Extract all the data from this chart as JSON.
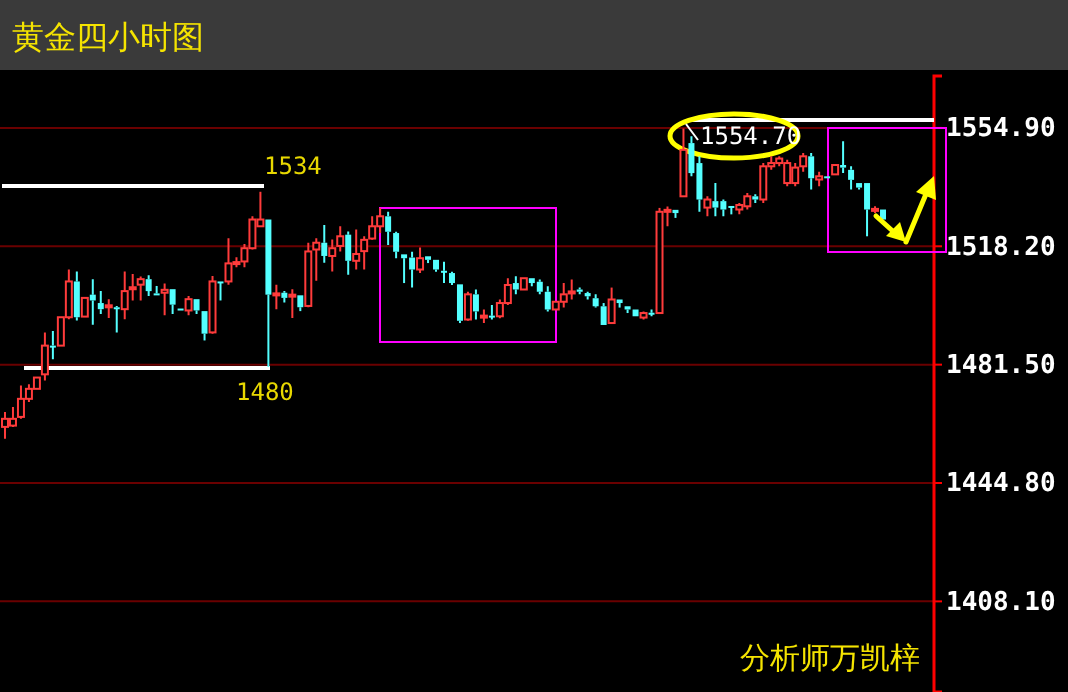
{
  "chart_data": {
    "type": "candlestick",
    "title": "黄金四小时图",
    "categories": [
      null,
      null,
      null,
      null,
      null,
      null,
      null,
      null,
      null,
      null,
      null,
      null,
      null,
      null,
      null,
      null,
      null,
      null,
      null,
      null,
      null,
      null,
      null,
      null,
      null,
      null,
      null,
      null,
      null,
      null,
      null,
      null,
      null,
      null,
      null,
      null,
      null,
      null,
      null,
      null,
      null,
      null,
      null,
      null,
      null,
      null,
      null,
      null,
      null,
      null,
      null,
      null,
      null,
      null,
      null,
      null,
      null,
      null,
      null,
      null,
      null,
      null,
      null,
      null,
      null,
      null,
      null,
      null,
      null,
      null,
      null,
      null,
      null,
      null,
      null,
      null,
      null,
      null,
      null,
      null,
      null,
      null,
      null,
      null,
      null,
      null,
      null,
      null,
      null,
      null,
      null,
      null,
      null,
      null,
      null,
      null,
      null,
      null,
      null,
      null,
      null,
      null,
      null,
      null,
      null,
      null,
      null,
      null,
      null,
      null,
      null
    ],
    "ohlc": [
      [
        1462.2,
        1466.8,
        1458.5,
        1464.7
      ],
      [
        1462.6,
        1468.4,
        1462.2,
        1464.7
      ],
      [
        1465.3,
        1475.0,
        1464.7,
        1470.9
      ],
      [
        1470.9,
        1475.4,
        1469.9,
        1474.0
      ],
      [
        1474.0,
        1477.5,
        1474.0,
        1477.5
      ],
      [
        1478.5,
        1491.5,
        1476.6,
        1487.4
      ],
      [
        1487.4,
        1491.9,
        1483.2,
        1487.0
      ],
      [
        1487.4,
        1496.2,
        1487.4,
        1496.2
      ],
      [
        1496.2,
        1511.0,
        1495.6,
        1507.3
      ],
      [
        1507.3,
        1510.4,
        1495.2,
        1496.2
      ],
      [
        1496.4,
        1502.2,
        1496.4,
        1502.2
      ],
      [
        1503.2,
        1508.0,
        1493.9,
        1501.4
      ],
      [
        1500.6,
        1504.3,
        1497.2,
        1498.7
      ],
      [
        1499.3,
        1501.8,
        1496.0,
        1499.9
      ],
      [
        1499.3,
        1499.7,
        1491.5,
        1498.9
      ],
      [
        1498.7,
        1510.4,
        1495.6,
        1504.3
      ],
      [
        1505.3,
        1509.6,
        1501.4,
        1505.5
      ],
      [
        1506.3,
        1508.8,
        1501.4,
        1508.0
      ],
      [
        1508.0,
        1509.2,
        1502.8,
        1504.3
      ],
      [
        1503.6,
        1505.9,
        1503.4,
        1503.4
      ],
      [
        1503.8,
        1506.7,
        1496.8,
        1504.7
      ],
      [
        1504.9,
        1504.9,
        1497.2,
        1500.1
      ],
      [
        1498.9,
        1498.9,
        1498.3,
        1498.3
      ],
      [
        1498.3,
        1502.8,
        1496.8,
        1501.8
      ],
      [
        1501.8,
        1501.8,
        1497.2,
        1498.3
      ],
      [
        1498.1,
        1498.1,
        1489.0,
        1491.1
      ],
      [
        1491.5,
        1509.0,
        1491.1,
        1507.3
      ],
      [
        1507.3,
        1507.3,
        1501.4,
        1507.0
      ],
      [
        1507.3,
        1520.7,
        1506.3,
        1512.9
      ],
      [
        1512.9,
        1514.8,
        1511.7,
        1513.3
      ],
      [
        1513.5,
        1518.9,
        1511.7,
        1517.6
      ],
      [
        1517.6,
        1527.5,
        1517.2,
        1526.5
      ],
      [
        1524.4,
        1535.1,
        1524.4,
        1526.5
      ],
      [
        1526.5,
        1526.5,
        1480.8,
        1503.2
      ],
      [
        1503.2,
        1506.3,
        1498.7,
        1503.6
      ],
      [
        1503.8,
        1504.3,
        1500.8,
        1502.2
      ],
      [
        1502.8,
        1504.9,
        1496.0,
        1503.2
      ],
      [
        1503.0,
        1503.0,
        1498.1,
        1499.3
      ],
      [
        1499.7,
        1519.3,
        1499.3,
        1516.6
      ],
      [
        1517.2,
        1520.7,
        1507.5,
        1519.3
      ],
      [
        1519.3,
        1524.8,
        1513.1,
        1515.2
      ],
      [
        1515.2,
        1520.3,
        1510.4,
        1517.6
      ],
      [
        1518.3,
        1524.4,
        1516.6,
        1521.3
      ],
      [
        1521.8,
        1522.8,
        1509.4,
        1513.7
      ],
      [
        1513.7,
        1523.4,
        1511.0,
        1515.8
      ],
      [
        1516.7,
        1521.3,
        1511.0,
        1520.2
      ],
      [
        1520.6,
        1527.5,
        1520.2,
        1524.4
      ],
      [
        1524.4,
        1530.1,
        1522.3,
        1527.5
      ],
      [
        1527.5,
        1528.9,
        1518.6,
        1522.7
      ],
      [
        1522.3,
        1522.7,
        1514.5,
        1516.5
      ],
      [
        1515.7,
        1515.7,
        1506.8,
        1514.5
      ],
      [
        1514.7,
        1516.5,
        1505.4,
        1511.0
      ],
      [
        1511.0,
        1517.8,
        1509.9,
        1514.5
      ],
      [
        1515.1,
        1515.1,
        1513.0,
        1514.0
      ],
      [
        1514.0,
        1514.0,
        1510.3,
        1511.0
      ],
      [
        1510.6,
        1513.4,
        1506.8,
        1510.5
      ],
      [
        1509.9,
        1510.3,
        1506.2,
        1506.8
      ],
      [
        1506.4,
        1506.4,
        1494.4,
        1495.1
      ],
      [
        1495.5,
        1504.1,
        1495.1,
        1503.3
      ],
      [
        1503.3,
        1504.8,
        1495.5,
        1498.0
      ],
      [
        1496.5,
        1498.6,
        1494.4,
        1496.7
      ],
      [
        1496.7,
        1500.0,
        1495.5,
        1496.5
      ],
      [
        1496.5,
        1501.7,
        1495.9,
        1500.6
      ],
      [
        1500.6,
        1508.3,
        1500.0,
        1506.2
      ],
      [
        1506.8,
        1508.9,
        1503.3,
        1504.8
      ],
      [
        1504.8,
        1508.3,
        1504.8,
        1508.3
      ],
      [
        1508.3,
        1508.3,
        1505.8,
        1506.8
      ],
      [
        1507.2,
        1507.9,
        1503.3,
        1504.1
      ],
      [
        1504.1,
        1505.8,
        1498.0,
        1498.6
      ],
      [
        1498.6,
        1501.0,
        1498.6,
        1501.0
      ],
      [
        1501.0,
        1506.8,
        1499.2,
        1503.3
      ],
      [
        1504.0,
        1507.9,
        1501.7,
        1504.2
      ],
      [
        1504.8,
        1505.4,
        1503.3,
        1504.1
      ],
      [
        1503.7,
        1504.1,
        1501.7,
        1502.7
      ],
      [
        1502.1,
        1503.3,
        1499.2,
        1499.6
      ],
      [
        1499.6,
        1500.6,
        1493.8,
        1493.8
      ],
      [
        1494.4,
        1505.4,
        1494.4,
        1501.7
      ],
      [
        1501.7,
        1501.7,
        1499.2,
        1500.6
      ],
      [
        1499.6,
        1499.6,
        1497.5,
        1498.6
      ],
      [
        1498.6,
        1498.6,
        1496.5,
        1496.5
      ],
      [
        1496.1,
        1498.0,
        1495.5,
        1497.5
      ],
      [
        1497.6,
        1498.6,
        1496.5,
        1497.5
      ],
      [
        1497.5,
        1530.1,
        1497.5,
        1528.9
      ],
      [
        1529.2,
        1530.5,
        1524.4,
        1529.5
      ],
      [
        1529.5,
        1529.5,
        1527.0,
        1528.5
      ],
      [
        1533.7,
        1554.7,
        1533.7,
        1548.1
      ],
      [
        1550.2,
        1552.3,
        1539.9,
        1540.9
      ],
      [
        1544.0,
        1546.1,
        1528.9,
        1532.7
      ],
      [
        1530.2,
        1533.7,
        1527.5,
        1532.7
      ],
      [
        1532.2,
        1537.8,
        1527.5,
        1530.2
      ],
      [
        1532.2,
        1532.7,
        1527.5,
        1529.6
      ],
      [
        1530.7,
        1530.7,
        1528.1,
        1530.4
      ],
      [
        1529.6,
        1531.6,
        1528.1,
        1531.0
      ],
      [
        1530.6,
        1534.7,
        1529.6,
        1533.7
      ],
      [
        1533.7,
        1534.3,
        1531.6,
        1532.7
      ],
      [
        1532.7,
        1544.0,
        1531.6,
        1543.0
      ],
      [
        1543.0,
        1546.1,
        1541.9,
        1544.0
      ],
      [
        1544.0,
        1546.1,
        1543.0,
        1545.4
      ],
      [
        1537.8,
        1545.0,
        1536.8,
        1544.0
      ],
      [
        1537.8,
        1544.0,
        1536.8,
        1542.6
      ],
      [
        1543.0,
        1547.1,
        1541.3,
        1546.1
      ],
      [
        1546.1,
        1547.1,
        1535.8,
        1539.3
      ],
      [
        1538.9,
        1541.3,
        1536.8,
        1539.9
      ],
      [
        1539.9,
        1539.9,
        1539.5,
        1539.7
      ],
      [
        1540.5,
        1543.4,
        1540.5,
        1543.4
      ],
      [
        1543.4,
        1550.8,
        1540.9,
        1542.6
      ],
      [
        1541.9,
        1543.0,
        1535.8,
        1538.8
      ],
      [
        1537.8,
        1537.8,
        1535.8,
        1536.4
      ],
      [
        1537.8,
        1537.8,
        1521.3,
        1529.6
      ],
      [
        1529.4,
        1530.6,
        1528.5,
        1529.8
      ],
      [
        1529.6,
        1529.6,
        1526.5,
        1526.5
      ]
    ],
    "ylim": [
      1380,
      1571
    ],
    "yticks": [
      {
        "value": 1408.1,
        "label": "1408.10"
      },
      {
        "value": 1444.8,
        "label": "1444.80"
      },
      {
        "value": 1481.5,
        "label": "1481.50"
      },
      {
        "value": 1518.2,
        "label": "1518.20"
      },
      {
        "value": 1554.9,
        "label": "1554.90"
      }
    ],
    "grid": "y",
    "annotations": [
      "1534",
      "1480",
      "1554.70",
      "分析师万凯梓"
    ]
  }
}
